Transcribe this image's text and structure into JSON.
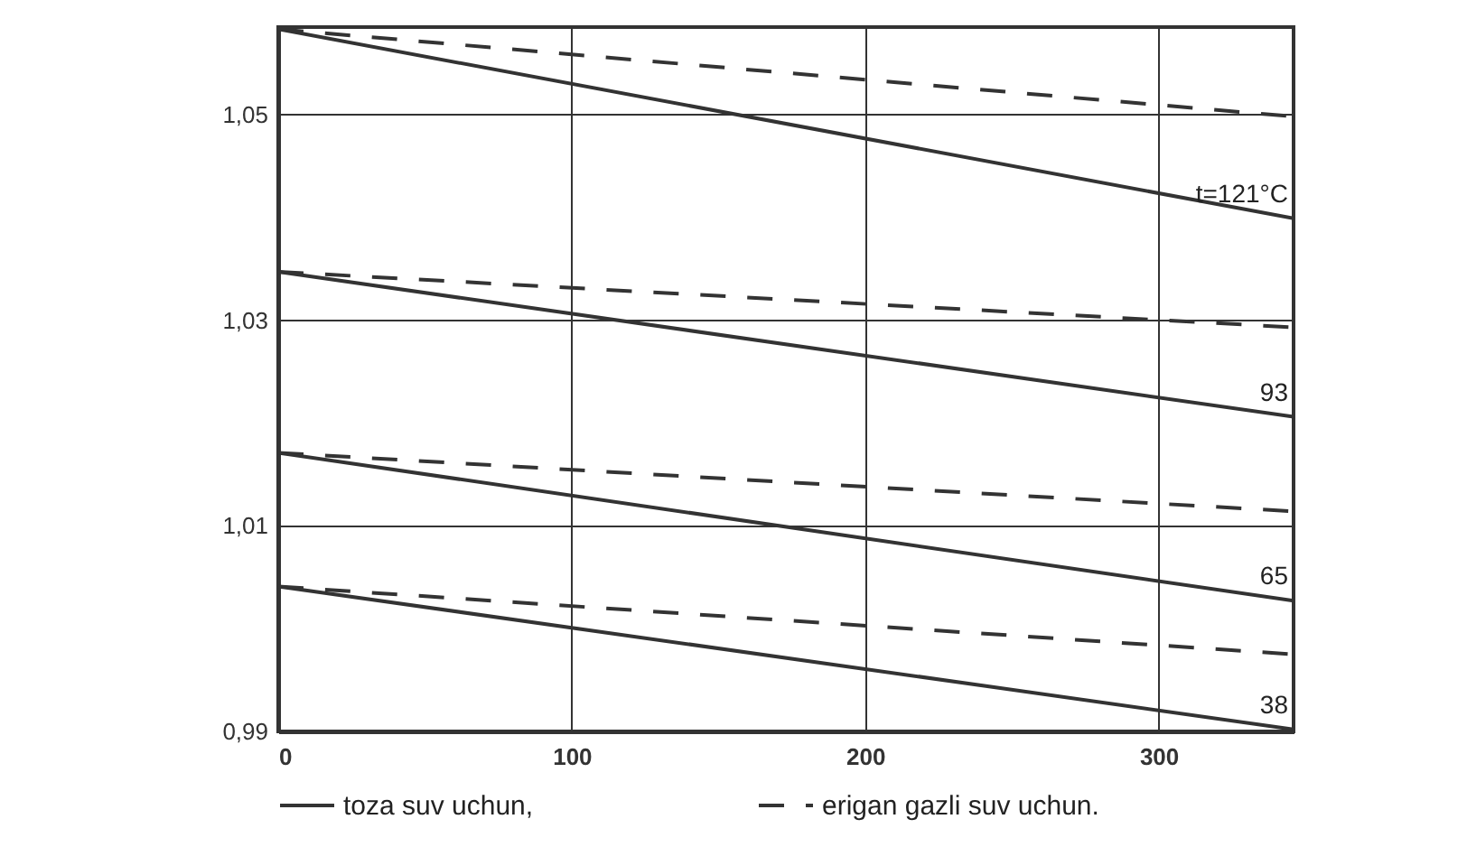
{
  "chart_data": {
    "type": "line",
    "x": [
      0,
      346
    ],
    "series": [
      {
        "name": "toza suv uchun,",
        "color": "#333333",
        "line_style": "solid",
        "values": [
          1.0583,
          1.0399
        ]
      },
      {
        "name": "erigan gazli suv uchun.",
        "color": "#333333",
        "line_style": "dashed",
        "values": [
          1.0583,
          1.0498
        ]
      },
      {
        "color": "#333333",
        "line_style": "solid",
        "values": [
          1.0347,
          1.0206
        ]
      },
      {
        "color": "#333333",
        "line_style": "dashed",
        "values": [
          1.0347,
          1.0293
        ]
      },
      {
        "color": "#333333",
        "line_style": "solid",
        "values": [
          1.0171,
          1.0027
        ]
      },
      {
        "color": "#333333",
        "line_style": "dashed",
        "values": [
          1.0171,
          1.0114
        ]
      },
      {
        "color": "#333333",
        "line_style": "solid",
        "values": [
          1.0041,
          0.9902
        ]
      },
      {
        "color": "#333333",
        "line_style": "dashed",
        "values": [
          1.0041,
          0.9975
        ]
      }
    ],
    "annotations": [
      "t=121°C",
      "93",
      "65",
      "38"
    ],
    "xlim": [
      0,
      346
    ],
    "xticks": [
      0,
      100,
      200,
      300
    ],
    "ylim": [
      0.99,
      1.0585
    ],
    "yticks": [
      {
        "value": 0.99,
        "label": "0,99"
      },
      {
        "value": 1.01,
        "label": "1,01"
      },
      {
        "value": 1.03,
        "label": "1,03"
      },
      {
        "value": 1.05,
        "label": "1,05"
      }
    ],
    "grid": true,
    "legend": "bottom",
    "marker": "none"
  }
}
